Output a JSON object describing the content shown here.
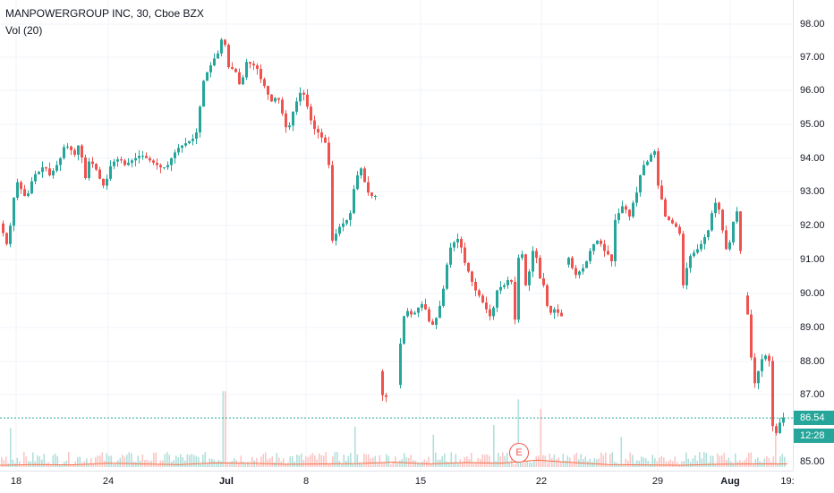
{
  "legend": {
    "symbol_line": "MANPOWERGROUP INC, 30, Cboe BZX",
    "volume_line": "Vol (20)"
  },
  "colors": {
    "up": "#26a69a",
    "down": "#ef5350",
    "up_volume": "#b2dfdb",
    "down_volume": "#fac6c5",
    "volume_ma": "#ff7043",
    "grid": "#f0f3fa",
    "last_price_line": "#26a69a"
  },
  "price_axis": {
    "ticks": [
      "98.00",
      "97.00",
      "96.00",
      "95.00",
      "94.00",
      "93.00",
      "92.00",
      "91.00",
      "90.00",
      "89.00",
      "88.00",
      "87.00",
      "85.00"
    ]
  },
  "last_price": {
    "value": "86.54",
    "countdown": "12:28"
  },
  "time_axis": {
    "labels": [
      {
        "text": "18",
        "bold": false
      },
      {
        "text": "24",
        "bold": false
      },
      {
        "text": "Jul",
        "bold": true
      },
      {
        "text": "8",
        "bold": false
      },
      {
        "text": "15",
        "bold": false
      },
      {
        "text": "22",
        "bold": false
      },
      {
        "text": "29",
        "bold": false
      },
      {
        "text": "Aug",
        "bold": true
      },
      {
        "text": "19:",
        "bold": false
      }
    ]
  },
  "earnings_marker": {
    "label": "E"
  },
  "chart_data": {
    "type": "candlestick",
    "symbol": "MANPOWERGROUP INC",
    "interval": "30",
    "exchange": "Cboe BZX",
    "ylim": [
      85.0,
      98.2
    ],
    "grid": true,
    "price_path": [
      [
        0,
        92.2
      ],
      [
        3,
        92.0
      ],
      [
        8,
        91.6
      ],
      [
        14,
        92.4
      ],
      [
        18,
        93.5
      ],
      [
        24,
        93.2
      ],
      [
        30,
        92.9
      ],
      [
        38,
        93.6
      ],
      [
        44,
        93.7
      ],
      [
        50,
        93.9
      ],
      [
        56,
        93.6
      ],
      [
        62,
        93.8
      ],
      [
        68,
        94.1
      ],
      [
        73,
        94.5
      ],
      [
        78,
        94.4
      ],
      [
        84,
        94.2
      ],
      [
        90,
        94.6
      ],
      [
        95,
        93.4
      ],
      [
        100,
        94.0
      ],
      [
        106,
        93.9
      ],
      [
        112,
        93.5
      ],
      [
        118,
        93.2
      ],
      [
        122,
        93.8
      ],
      [
        128,
        94.0
      ],
      [
        134,
        94.1
      ],
      [
        140,
        93.9
      ],
      [
        146,
        94.0
      ],
      [
        152,
        94.1
      ],
      [
        158,
        94.2
      ],
      [
        164,
        94.1
      ],
      [
        170,
        94.0
      ],
      [
        176,
        93.9
      ],
      [
        182,
        93.8
      ],
      [
        188,
        93.9
      ],
      [
        194,
        94.2
      ],
      [
        200,
        94.4
      ],
      [
        206,
        94.5
      ],
      [
        212,
        94.6
      ],
      [
        218,
        94.7
      ],
      [
        222,
        95.0
      ],
      [
        226,
        96.2
      ],
      [
        230,
        96.5
      ],
      [
        234,
        96.7
      ],
      [
        238,
        96.9
      ],
      [
        242,
        97.1
      ],
      [
        246,
        97.2
      ],
      [
        250,
        97.9
      ],
      [
        254,
        96.9
      ],
      [
        258,
        96.6
      ],
      [
        262,
        96.8
      ],
      [
        266,
        96.4
      ],
      [
        270,
        96.1
      ],
      [
        274,
        96.8
      ],
      [
        278,
        97.0
      ],
      [
        282,
        96.7
      ],
      [
        286,
        96.9
      ],
      [
        290,
        96.5
      ],
      [
        294,
        96.3
      ],
      [
        298,
        96.1
      ],
      [
        302,
        95.8
      ],
      [
        306,
        95.7
      ],
      [
        310,
        96.0
      ],
      [
        314,
        95.6
      ],
      [
        318,
        95.2
      ],
      [
        322,
        94.8
      ],
      [
        326,
        95.3
      ],
      [
        330,
        95.6
      ],
      [
        334,
        95.9
      ],
      [
        338,
        96.1
      ],
      [
        342,
        95.8
      ],
      [
        346,
        95.4
      ],
      [
        350,
        95.0
      ],
      [
        354,
        94.9
      ],
      [
        358,
        94.8
      ],
      [
        362,
        94.6
      ],
      [
        366,
        94.5
      ],
      [
        368,
        93.9
      ],
      [
        370,
        92.3
      ],
      [
        372,
        91.7
      ],
      [
        376,
        91.9
      ],
      [
        380,
        92.1
      ],
      [
        384,
        92.2
      ],
      [
        388,
        92.3
      ],
      [
        392,
        92.5
      ],
      [
        396,
        93.2
      ],
      [
        400,
        93.6
      ],
      [
        404,
        93.8
      ],
      [
        408,
        93.4
      ],
      [
        412,
        93.1
      ],
      [
        416,
        93.0
      ],
      [
        420,
        93.0
      ],
      [
        422,
        88.5
      ],
      [
        426,
        87.3
      ],
      [
        430,
        87.1
      ],
      [
        434,
        87.2
      ],
      [
        438,
        87.1
      ],
      [
        442,
        86.9
      ],
      [
        446,
        88.1
      ],
      [
        450,
        89.3
      ],
      [
        454,
        89.7
      ],
      [
        458,
        89.6
      ],
      [
        462,
        89.5
      ],
      [
        466,
        89.7
      ],
      [
        470,
        89.8
      ],
      [
        474,
        89.9
      ],
      [
        478,
        89.5
      ],
      [
        482,
        89.2
      ],
      [
        486,
        89.3
      ],
      [
        490,
        89.6
      ],
      [
        494,
        90.0
      ],
      [
        498,
        90.6
      ],
      [
        502,
        91.4
      ],
      [
        506,
        91.6
      ],
      [
        510,
        91.7
      ],
      [
        514,
        91.8
      ],
      [
        518,
        91.2
      ],
      [
        522,
        90.9
      ],
      [
        526,
        90.7
      ],
      [
        530,
        90.3
      ],
      [
        534,
        90.2
      ],
      [
        538,
        90.0
      ],
      [
        542,
        89.8
      ],
      [
        546,
        89.6
      ],
      [
        550,
        89.4
      ],
      [
        554,
        90.1
      ],
      [
        558,
        90.4
      ],
      [
        562,
        90.3
      ],
      [
        566,
        90.5
      ],
      [
        570,
        90.6
      ],
      [
        574,
        90.4
      ],
      [
        578,
        88.4
      ],
      [
        580,
        91.2
      ],
      [
        584,
        91.3
      ],
      [
        588,
        90.4
      ],
      [
        592,
        90.8
      ],
      [
        596,
        91.4
      ],
      [
        600,
        91.2
      ],
      [
        604,
        90.6
      ],
      [
        608,
        90.4
      ],
      [
        612,
        89.8
      ],
      [
        616,
        89.6
      ],
      [
        620,
        89.7
      ],
      [
        624,
        89.6
      ],
      [
        628,
        89.5
      ],
      [
        632,
        91.0
      ],
      [
        636,
        91.2
      ],
      [
        640,
        90.9
      ],
      [
        644,
        90.7
      ],
      [
        648,
        90.8
      ],
      [
        652,
        90.9
      ],
      [
        656,
        91.1
      ],
      [
        660,
        91.4
      ],
      [
        664,
        91.6
      ],
      [
        668,
        91.7
      ],
      [
        672,
        91.6
      ],
      [
        676,
        91.4
      ],
      [
        680,
        91.3
      ],
      [
        684,
        91.1
      ],
      [
        688,
        92.3
      ],
      [
        692,
        92.5
      ],
      [
        696,
        92.7
      ],
      [
        700,
        92.6
      ],
      [
        704,
        92.4
      ],
      [
        708,
        92.8
      ],
      [
        712,
        93.1
      ],
      [
        716,
        93.6
      ],
      [
        720,
        93.9
      ],
      [
        724,
        94.0
      ],
      [
        728,
        94.2
      ],
      [
        732,
        94.3
      ],
      [
        736,
        93.3
      ],
      [
        740,
        92.9
      ],
      [
        744,
        92.4
      ],
      [
        748,
        92.3
      ],
      [
        752,
        92.2
      ],
      [
        756,
        92.1
      ],
      [
        760,
        91.9
      ],
      [
        762,
        90.2
      ],
      [
        766,
        90.6
      ],
      [
        770,
        91.2
      ],
      [
        774,
        91.3
      ],
      [
        778,
        91.4
      ],
      [
        782,
        91.5
      ],
      [
        786,
        91.7
      ],
      [
        790,
        91.9
      ],
      [
        794,
        92.1
      ],
      [
        798,
        92.9
      ],
      [
        802,
        92.7
      ],
      [
        806,
        92.5
      ],
      [
        810,
        91.5
      ],
      [
        814,
        91.4
      ],
      [
        818,
        91.9
      ],
      [
        822,
        92.6
      ],
      [
        826,
        92.5
      ],
      [
        830,
        90.3
      ],
      [
        834,
        89.9
      ],
      [
        838,
        89.2
      ],
      [
        842,
        87.4
      ],
      [
        846,
        87.7
      ],
      [
        850,
        88.1
      ],
      [
        854,
        88.4
      ],
      [
        858,
        88.3
      ],
      [
        862,
        88.1
      ],
      [
        864,
        86.3
      ],
      [
        868,
        86.1
      ],
      [
        872,
        86.4
      ],
      [
        876,
        86.55
      ]
    ],
    "volume_ma_path": [
      [
        0,
        85.16
      ],
      [
        40,
        85.18
      ],
      [
        80,
        85.17
      ],
      [
        120,
        85.22
      ],
      [
        160,
        85.2
      ],
      [
        200,
        85.18
      ],
      [
        240,
        85.23
      ],
      [
        280,
        85.22
      ],
      [
        320,
        85.19
      ],
      [
        360,
        85.2
      ],
      [
        400,
        85.21
      ],
      [
        440,
        85.25
      ],
      [
        480,
        85.2
      ],
      [
        520,
        85.24
      ],
      [
        560,
        85.22
      ],
      [
        600,
        85.31
      ],
      [
        640,
        85.24
      ],
      [
        680,
        85.18
      ],
      [
        720,
        85.17
      ],
      [
        760,
        85.16
      ],
      [
        800,
        85.19
      ],
      [
        840,
        85.2
      ],
      [
        880,
        85.2
      ]
    ]
  }
}
